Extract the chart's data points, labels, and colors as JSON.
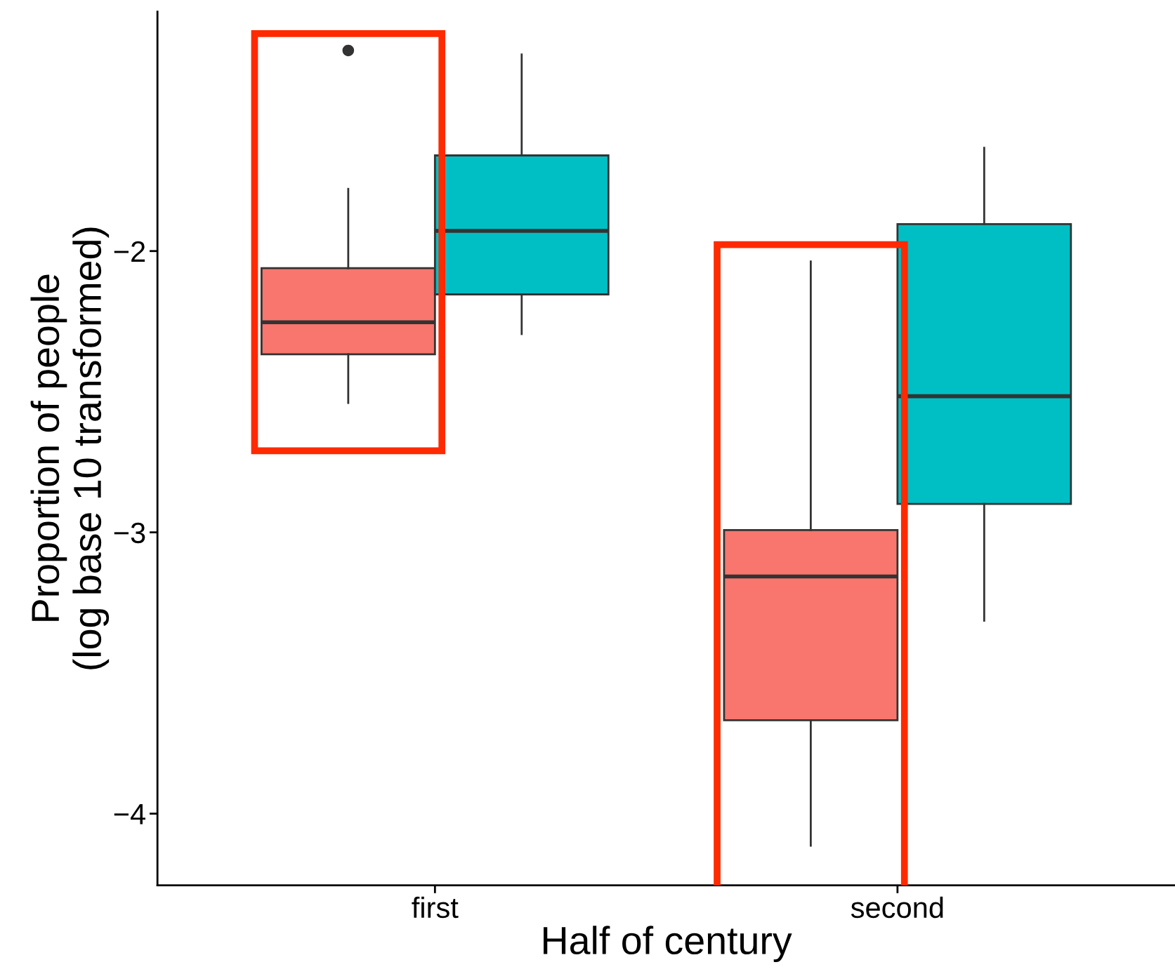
{
  "chart_data": {
    "type": "box",
    "xlabel": "Half of century",
    "ylabel": "Proportion of people\n(log base 10 transformed)",
    "categories": [
      "first",
      "second"
    ],
    "series": [
      {
        "color": "#f8766d",
        "boxes": [
          {
            "low": -2.54,
            "q1": -2.367,
            "median": -2.253,
            "q3": -2.061,
            "high": -1.779,
            "outliers": [
              -1.287
            ]
          },
          {
            "low": -4.114,
            "q1": -3.668,
            "median": -3.157,
            "q3": -2.992,
            "high": -2.037
          }
        ]
      },
      {
        "color": "#00bfc4",
        "boxes": [
          {
            "low": -2.295,
            "q1": -2.154,
            "median": -1.928,
            "q3": -1.66,
            "high": -1.301
          },
          {
            "low": -3.314,
            "q1": -2.899,
            "median": -2.516,
            "q3": -1.904,
            "high": -1.633
          }
        ]
      }
    ],
    "ylim": [
      -4.255,
      -1.149
    ],
    "yticks": [
      {
        "value": -4,
        "label": "−4"
      },
      {
        "value": -3,
        "label": "−3"
      },
      {
        "value": -2,
        "label": "−2"
      }
    ],
    "grid": false,
    "legend": false
  }
}
